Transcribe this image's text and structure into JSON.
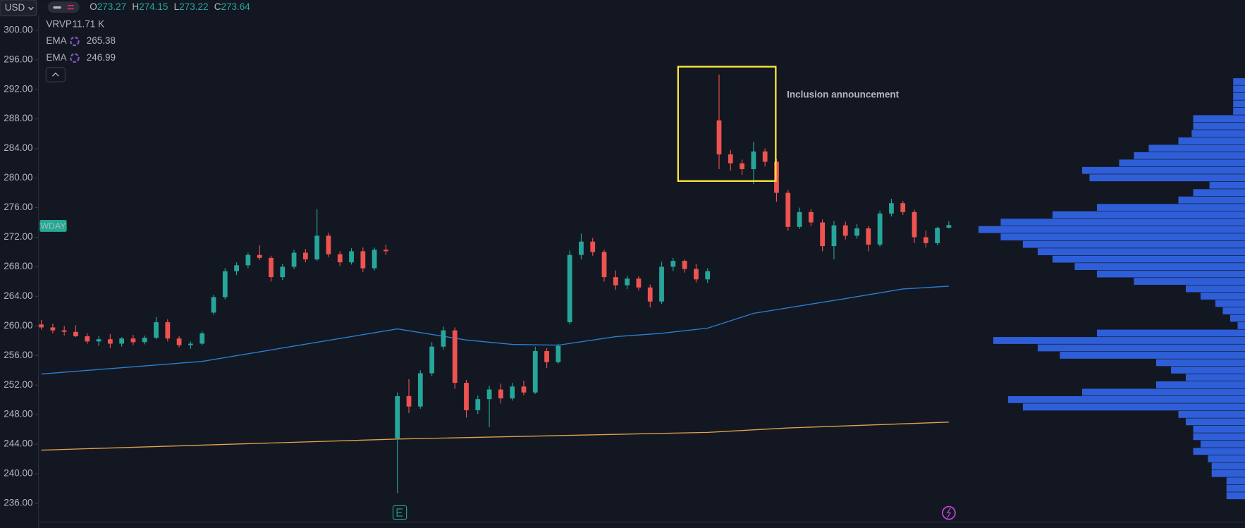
{
  "chart_data": {
    "type": "candlestick",
    "currency": "USD",
    "symbol": "WDAY",
    "ohlc_labels": [
      "O",
      "H",
      "L",
      "C"
    ],
    "annotation": "Inclusion announcement",
    "ylim": [
      232.67,
      304.08
    ],
    "yticks": [
      {
        "value": 236,
        "label": "236.00"
      },
      {
        "value": 240,
        "label": "240.00"
      },
      {
        "value": 244,
        "label": "244.00"
      },
      {
        "value": 248,
        "label": "248.00"
      },
      {
        "value": 252,
        "label": "252.00"
      },
      {
        "value": 256,
        "label": "256.00"
      },
      {
        "value": 260,
        "label": "260.00"
      },
      {
        "value": 264,
        "label": "264.00"
      },
      {
        "value": 268,
        "label": "268.00"
      },
      {
        "value": 272,
        "label": "272.00"
      },
      {
        "value": 276,
        "label": "276.00"
      },
      {
        "value": 280,
        "label": "280.00"
      },
      {
        "value": 284,
        "label": "284.00"
      },
      {
        "value": 288,
        "label": "288.00"
      },
      {
        "value": 292,
        "label": "292.00"
      },
      {
        "value": 296,
        "label": "296.00"
      },
      {
        "value": 300,
        "label": "300.00"
      }
    ],
    "series": [
      {
        "name": "WDAY",
        "up_color": "#26a69a",
        "down_color": "#ef5350",
        "open": [
          260.2,
          259.8,
          259.4,
          259.2,
          258.6,
          257.9,
          258.2,
          257.6,
          258.3,
          257.8,
          258.4,
          260.5,
          258.3,
          257.4,
          257.6,
          261.8,
          263.9,
          267.4,
          268.2,
          269.6,
          269.2,
          266.6,
          268.0,
          269.9,
          269.0,
          272.2,
          269.7,
          268.6,
          270.1,
          267.8,
          270.3,
          244.8,
          250.5,
          249.1,
          253.6,
          257.2,
          259.4,
          252.3,
          248.6,
          250.1,
          251.4,
          250.2,
          251.8,
          251.0,
          256.6,
          255.1,
          260.5,
          269.6,
          271.4,
          270.0,
          266.6,
          265.5,
          266.4,
          265.2,
          263.3,
          268.0,
          268.8,
          267.7,
          266.3,
          287.8,
          283.2,
          282.0,
          281.2,
          283.6,
          282.2,
          278.0,
          273.4,
          275.4,
          274.0,
          270.8,
          273.6,
          272.2,
          273.2,
          271.0,
          275.2,
          276.6,
          275.4,
          272.0,
          271.2,
          273.27
        ],
        "high": [
          260.8,
          260.3,
          260.0,
          260.1,
          259.0,
          258.6,
          258.9,
          258.5,
          258.8,
          258.7,
          261.2,
          260.9,
          258.6,
          257.9,
          259.3,
          264.2,
          267.8,
          268.6,
          269.9,
          270.9,
          269.5,
          268.4,
          270.3,
          270.4,
          275.8,
          272.6,
          270.1,
          270.5,
          270.6,
          270.6,
          271.0,
          251.0,
          252.8,
          254.0,
          257.8,
          259.9,
          259.8,
          252.7,
          250.6,
          251.9,
          252.2,
          252.3,
          252.6,
          257.2,
          257.0,
          257.6,
          270.2,
          272.5,
          271.9,
          270.3,
          267.5,
          266.8,
          266.7,
          265.6,
          268.7,
          269.2,
          269.0,
          268.4,
          267.8,
          294.0,
          283.8,
          282.5,
          284.9,
          284.0,
          282.6,
          278.4,
          276.0,
          275.8,
          274.4,
          274.2,
          274.1,
          273.8,
          273.5,
          275.6,
          277.2,
          276.9,
          275.7,
          272.9,
          273.4,
          274.15
        ],
        "low": [
          259.5,
          259.0,
          258.7,
          258.5,
          257.6,
          257.3,
          257.0,
          257.2,
          257.4,
          257.5,
          258.2,
          257.9,
          257.1,
          256.9,
          257.4,
          261.5,
          263.6,
          266.9,
          267.8,
          268.9,
          266.0,
          266.2,
          267.7,
          268.6,
          268.8,
          269.3,
          268.1,
          268.3,
          267.3,
          267.5,
          269.6,
          237.4,
          248.2,
          248.8,
          253.2,
          256.8,
          251.5,
          247.6,
          248.1,
          246.3,
          249.5,
          249.9,
          250.6,
          250.8,
          254.3,
          254.9,
          260.2,
          269.0,
          269.5,
          266.0,
          264.9,
          265.0,
          264.8,
          262.5,
          263.0,
          267.4,
          267.2,
          265.9,
          265.8,
          281.2,
          281.0,
          280.4,
          279.2,
          281.6,
          276.8,
          272.9,
          273.1,
          273.5,
          270.1,
          269.0,
          271.7,
          271.8,
          270.1,
          270.7,
          274.8,
          275.0,
          271.2,
          270.6,
          270.9,
          273.22
        ],
        "close": [
          259.8,
          259.4,
          259.2,
          258.6,
          257.9,
          258.2,
          257.6,
          258.3,
          257.8,
          258.4,
          260.5,
          258.3,
          257.4,
          257.6,
          259.0,
          263.9,
          267.4,
          268.2,
          269.6,
          269.2,
          266.6,
          268.0,
          269.9,
          269.0,
          272.2,
          269.7,
          268.6,
          270.1,
          267.8,
          270.3,
          270.1,
          250.5,
          249.1,
          253.6,
          257.2,
          259.4,
          252.3,
          248.6,
          250.1,
          251.4,
          250.2,
          251.8,
          251.0,
          256.6,
          255.1,
          257.3,
          269.6,
          271.4,
          270.0,
          266.6,
          265.5,
          266.4,
          265.2,
          263.3,
          268.0,
          268.8,
          267.7,
          266.3,
          267.4,
          283.2,
          282.0,
          281.2,
          283.6,
          282.2,
          278.0,
          273.4,
          275.4,
          274.0,
          270.8,
          273.6,
          272.2,
          273.2,
          271.0,
          275.2,
          276.6,
          275.4,
          272.0,
          271.2,
          273.27,
          273.64
        ]
      }
    ],
    "indicators": [
      {
        "name": "EMA",
        "color": "#2a7fd4",
        "legend_color": "#2196f3",
        "x": [
          0,
          14,
          31,
          37,
          41,
          45,
          50,
          54,
          58,
          62,
          70,
          75,
          79
        ],
        "values": [
          253.5,
          255.2,
          259.6,
          258.1,
          257.5,
          257.4,
          258.55,
          259.0,
          259.7,
          261.7,
          263.7,
          265.0,
          265.38
        ]
      },
      {
        "name": "EMA",
        "color": "#e0a24a",
        "legend_color": "#f5a623",
        "x": [
          0,
          31,
          46,
          58,
          65,
          79
        ],
        "values": [
          243.2,
          244.7,
          245.2,
          245.6,
          246.2,
          246.99
        ]
      }
    ],
    "volume_profile": {
      "name": "VRVP",
      "value_label": "11.71 K",
      "color": "#2f5fd8",
      "xlim": [
        0,
        400
      ],
      "prices": [
        293,
        292,
        291,
        290,
        289,
        288,
        287,
        286,
        285,
        284,
        283,
        282,
        281,
        280,
        279,
        278,
        277,
        276,
        275,
        274,
        273,
        272,
        271,
        270,
        269,
        268,
        267,
        266,
        265,
        264,
        263,
        262,
        261,
        260,
        259,
        258,
        257,
        256,
        255,
        254,
        253,
        252,
        251,
        250,
        249,
        248,
        247,
        246,
        245,
        244,
        243,
        242,
        241,
        240,
        239,
        238,
        237
      ],
      "volumes": [
        16,
        16,
        16,
        16,
        16,
        70,
        70,
        72,
        90,
        130,
        150,
        170,
        220,
        210,
        48,
        70,
        90,
        200,
        260,
        330,
        360,
        330,
        300,
        280,
        260,
        230,
        200,
        150,
        80,
        60,
        40,
        30,
        20,
        10,
        200,
        340,
        280,
        250,
        120,
        100,
        80,
        120,
        220,
        320,
        300,
        90,
        80,
        70,
        70,
        60,
        70,
        50,
        45,
        45,
        25,
        25,
        25
      ]
    }
  }
}
